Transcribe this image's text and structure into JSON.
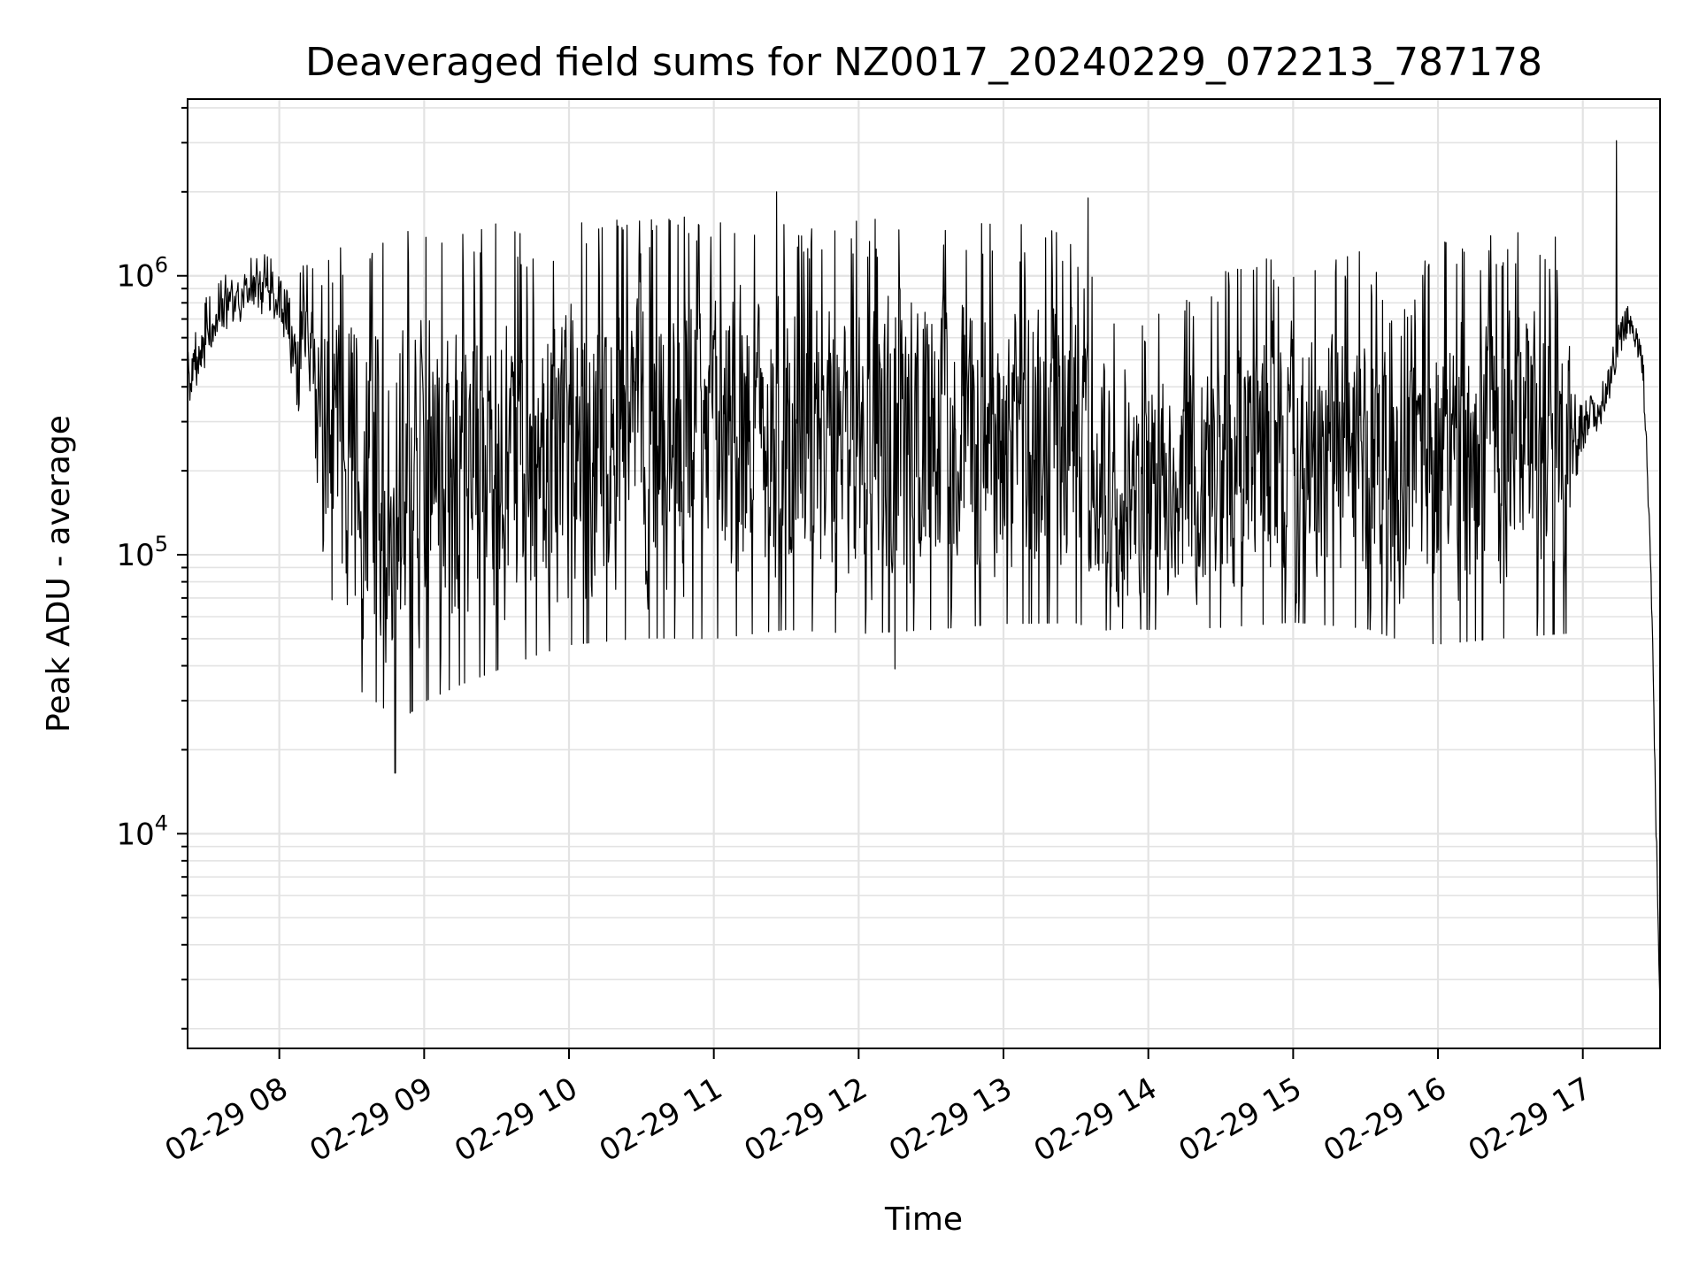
{
  "chart_data": {
    "type": "line",
    "title": "Deaveraged field sums for NZ0017_20240229_072213_787178",
    "xlabel": "Time",
    "ylabel": "Peak ADU - average",
    "y_scale": "log",
    "x_range": [
      "2024-02-29 07:22",
      "2024-02-29 17:32"
    ],
    "ylim": [
      1700,
      4300000
    ],
    "grid": "on (major and minor)",
    "line_color": "#000000",
    "x_ticks": [
      {
        "value": "2024-02-29 08:00",
        "label": "02-29 08"
      },
      {
        "value": "2024-02-29 09:00",
        "label": "02-29 09"
      },
      {
        "value": "2024-02-29 10:00",
        "label": "02-29 10"
      },
      {
        "value": "2024-02-29 11:00",
        "label": "02-29 11"
      },
      {
        "value": "2024-02-29 12:00",
        "label": "02-29 12"
      },
      {
        "value": "2024-02-29 13:00",
        "label": "02-29 13"
      },
      {
        "value": "2024-02-29 14:00",
        "label": "02-29 14"
      },
      {
        "value": "2024-02-29 15:00",
        "label": "02-29 15"
      },
      {
        "value": "2024-02-29 16:00",
        "label": "02-29 16"
      },
      {
        "value": "2024-02-29 17:00",
        "label": "02-29 17"
      }
    ],
    "y_ticks": [
      {
        "value": 10000,
        "base": "10",
        "exp": "4"
      },
      {
        "value": 100000,
        "base": "10",
        "exp": "5"
      },
      {
        "value": 1000000,
        "base": "10",
        "exp": "6"
      }
    ],
    "envelope": {
      "x": [
        "07:22",
        "07:30",
        "07:40",
        "07:50",
        "08:00",
        "08:10",
        "08:20",
        "08:30",
        "08:40",
        "08:50",
        "09:00",
        "09:15",
        "09:30",
        "09:45",
        "10:00",
        "10:30",
        "11:00",
        "11:30",
        "12:00",
        "12:30",
        "13:00",
        "13:30",
        "13:40",
        "13:50",
        "14:00",
        "14:30",
        "15:00",
        "15:30",
        "15:45",
        "16:00",
        "16:30",
        "16:55",
        "17:00",
        "17:10",
        "17:15",
        "17:20",
        "17:25",
        "17:28",
        "17:30",
        "17:31",
        "17:32"
      ],
      "high": [
        500000,
        800000,
        1000000,
        1100000,
        1100000,
        900000,
        800000,
        900000,
        900000,
        900000,
        900000,
        900000,
        1000000,
        900000,
        1000000,
        1000000,
        1100000,
        1000000,
        1000000,
        1000000,
        1000000,
        900000,
        600000,
        400000,
        500000,
        700000,
        800000,
        800000,
        500000,
        900000,
        900000,
        900000,
        500000,
        600000,
        900000,
        1000000,
        700000,
        150000,
        20000,
        8000,
        2500
      ],
      "low": [
        350000,
        500000,
        700000,
        700000,
        600000,
        300000,
        90000,
        40000,
        35000,
        30000,
        35000,
        40000,
        45000,
        50000,
        55000,
        58000,
        58000,
        62000,
        60000,
        62000,
        65000,
        65000,
        60000,
        60000,
        60000,
        62000,
        65000,
        62000,
        55000,
        55000,
        58000,
        60000,
        150000,
        250000,
        400000,
        500000,
        300000,
        80000,
        12000,
        4000,
        2300
      ]
    },
    "spikes": [
      {
        "x": "08:48",
        "y": 16500
      },
      {
        "x": "11:26",
        "y": 2000000
      },
      {
        "x": "12:15",
        "y": 39000
      },
      {
        "x": "13:35",
        "y": 1900000
      },
      {
        "x": "17:14",
        "y": 3050000
      }
    ]
  }
}
